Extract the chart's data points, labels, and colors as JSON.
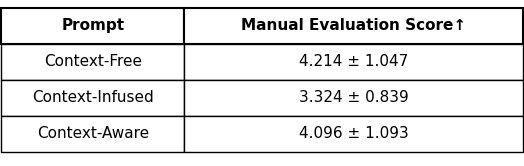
{
  "col_headers": [
    "Prompt",
    "Manual Evaluation Score↑"
  ],
  "rows": [
    [
      "Context-Free",
      "4.214 ± 1.047"
    ],
    [
      "Context-Infused",
      "3.324 ± 0.839"
    ],
    [
      "Context-Aware",
      "4.096 ± 1.093"
    ]
  ],
  "fig_width": 5.24,
  "fig_height": 1.66,
  "dpi": 100,
  "background_color": "#ffffff",
  "header_fontsize": 11,
  "cell_fontsize": 11
}
